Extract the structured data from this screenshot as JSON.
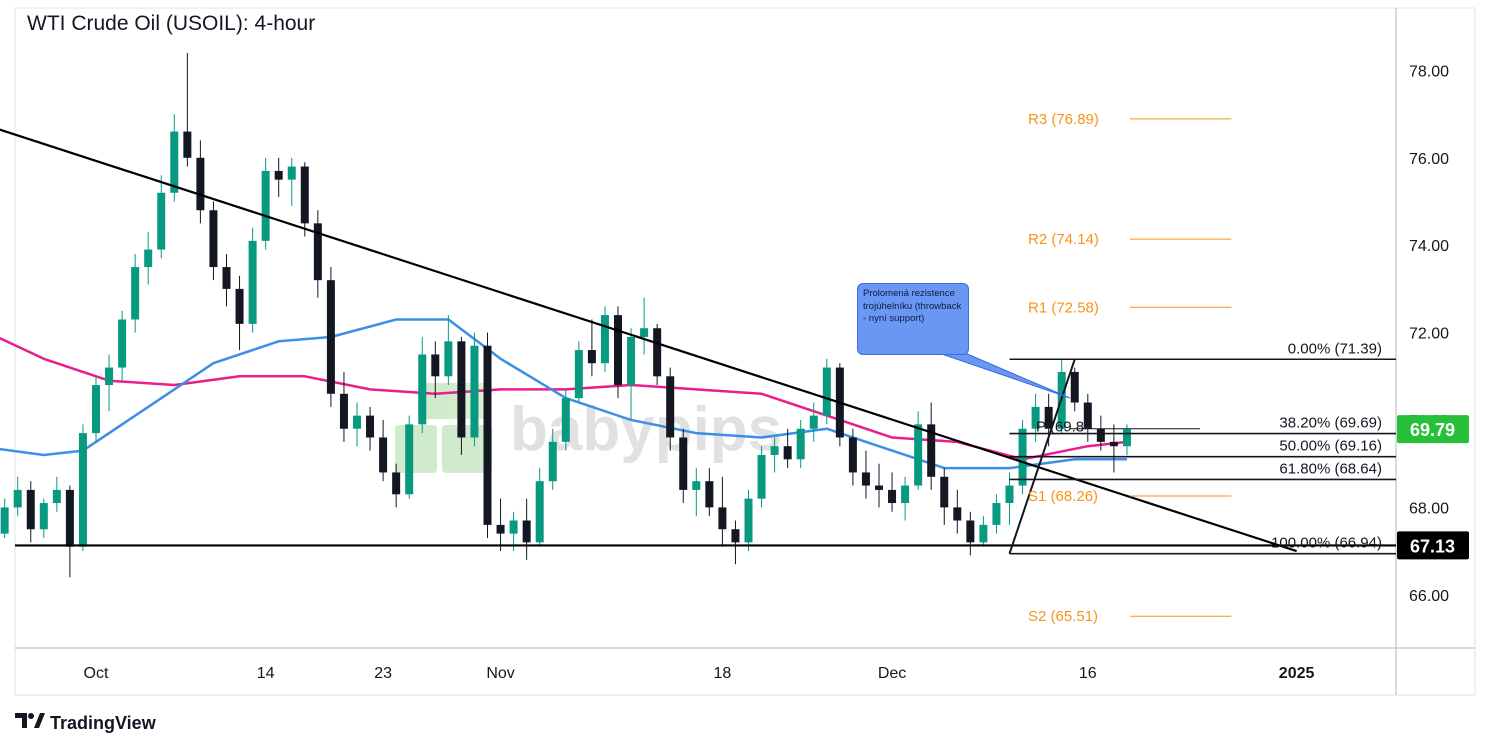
{
  "title": "WTI Crude Oil (USOIL): 4-hour",
  "watermark": "babypips",
  "footer_brand": "TradingView",
  "callout_text": "Prolomená rezistence trojúhelníku (throwback - nyní support)",
  "colors": {
    "up_candle": "#089981",
    "down_candle": "#131722",
    "ma_pink": "#e91e8c",
    "ma_blue": "#3d8fe6",
    "pivot": "#f7931a",
    "price_label_bg": "#26c139",
    "support_label_bg": "#000000",
    "callout_bg": "#6a97f2"
  },
  "chart_data": {
    "type": "candlestick",
    "instrument": "WTI Crude Oil (USOIL)",
    "timeframe": "4-hour",
    "y_axis": {
      "ticks": [
        "78.00",
        "76.00",
        "74.00",
        "72.00",
        "70.00",
        "68.00",
        "66.00"
      ],
      "tick_values": [
        78,
        76,
        74,
        72,
        70,
        68,
        66
      ],
      "range": [
        64.8,
        79.8
      ],
      "side": "right"
    },
    "x_axis": {
      "ticks": [
        "Oct",
        "14",
        "23",
        "Nov",
        "18",
        "Dec",
        "16",
        "2025"
      ],
      "tick_dates": [
        "2024-10-01",
        "2024-10-14",
        "2024-10-23",
        "2024-11-01",
        "2024-11-18",
        "2024-12-01",
        "2024-12-16",
        "2025-01-01"
      ]
    },
    "price_label": {
      "text": "69.79",
      "value": 69.79
    },
    "support_label": {
      "text": "67.13",
      "value": 67.13
    },
    "pivots": [
      {
        "label": "R3 (76.89)",
        "value": 76.89
      },
      {
        "label": "R2 (74.14)",
        "value": 74.14
      },
      {
        "label": "R1 (72.58)",
        "value": 72.58
      },
      {
        "label": "P (69.8",
        "value": 69.8
      },
      {
        "label": "S1 (68.26)",
        "value": 68.26
      },
      {
        "label": "S2 (65.51)",
        "value": 65.51
      }
    ],
    "fibonacci": [
      {
        "label": "0.00% (71.39)",
        "value": 71.39
      },
      {
        "label": "38.20% (69.69)",
        "value": 69.69
      },
      {
        "label": "50.00% (69.16)",
        "value": 69.16
      },
      {
        "label": "61.80% (68.64)",
        "value": 68.64
      },
      {
        "label": "100.00% (66.94)",
        "value": 66.94
      }
    ],
    "fib_swing": {
      "low": {
        "date": "2024-12-10",
        "value": 66.94
      },
      "high": {
        "date": "2024-12-15",
        "value": 71.39
      }
    },
    "trendlines": [
      {
        "name": "descending triangle resistance",
        "from": {
          "date": "2024-09-21",
          "value": 76.9
        },
        "to": {
          "date": "2025-01-01",
          "value": 67.0
        }
      },
      {
        "name": "horizontal support",
        "from": {
          "date": "2024-09-17",
          "value": 67.13
        },
        "to": {
          "date": "2025-01-01",
          "value": 67.13
        }
      }
    ],
    "candles": [
      {
        "d": "2024-09-17",
        "o": 69.5,
        "h": 69.8,
        "l": 69.2,
        "c": 69.3
      },
      {
        "d": "2024-09-18",
        "o": 69.3,
        "h": 69.4,
        "l": 68.6,
        "c": 68.8
      },
      {
        "d": "2024-09-19",
        "o": 68.8,
        "h": 70.0,
        "l": 68.7,
        "c": 69.8
      },
      {
        "d": "2024-09-20",
        "o": 69.8,
        "h": 69.9,
        "l": 68.3,
        "c": 68.5
      },
      {
        "d": "2024-09-21",
        "o": 68.5,
        "h": 68.6,
        "l": 67.0,
        "c": 67.3
      },
      {
        "d": "2024-09-22",
        "o": 67.3,
        "h": 67.9,
        "l": 67.1,
        "c": 67.6
      },
      {
        "d": "2024-09-23",
        "o": 67.6,
        "h": 67.9,
        "l": 67.1,
        "c": 67.4
      },
      {
        "d": "2024-09-24",
        "o": 67.4,
        "h": 68.2,
        "l": 67.3,
        "c": 68.0
      },
      {
        "d": "2024-09-25",
        "o": 68.0,
        "h": 68.7,
        "l": 67.8,
        "c": 68.4
      },
      {
        "d": "2024-09-26",
        "o": 68.4,
        "h": 68.6,
        "l": 67.2,
        "c": 67.5
      },
      {
        "d": "2024-09-27",
        "o": 67.5,
        "h": 68.2,
        "l": 67.3,
        "c": 68.1
      },
      {
        "d": "2024-09-28",
        "o": 68.1,
        "h": 68.7,
        "l": 67.9,
        "c": 68.4
      },
      {
        "d": "2024-09-29",
        "o": 68.4,
        "h": 68.5,
        "l": 66.4,
        "c": 67.1
      },
      {
        "d": "2024-09-30",
        "o": 67.1,
        "h": 69.9,
        "l": 67.0,
        "c": 69.7
      },
      {
        "d": "2024-10-01",
        "o": 69.7,
        "h": 71.0,
        "l": 69.5,
        "c": 70.8
      },
      {
        "d": "2024-10-02",
        "o": 70.8,
        "h": 71.5,
        "l": 70.2,
        "c": 71.2
      },
      {
        "d": "2024-10-03",
        "o": 71.2,
        "h": 72.5,
        "l": 70.9,
        "c": 72.3
      },
      {
        "d": "2024-10-04",
        "o": 72.3,
        "h": 73.8,
        "l": 72.0,
        "c": 73.5
      },
      {
        "d": "2024-10-05",
        "o": 73.5,
        "h": 74.3,
        "l": 73.1,
        "c": 73.9
      },
      {
        "d": "2024-10-06",
        "o": 73.9,
        "h": 75.6,
        "l": 73.7,
        "c": 75.2
      },
      {
        "d": "2024-10-07",
        "o": 75.2,
        "h": 77.0,
        "l": 75.0,
        "c": 76.6
      },
      {
        "d": "2024-10-08",
        "o": 76.6,
        "h": 78.4,
        "l": 75.8,
        "c": 76.0
      },
      {
        "d": "2024-10-09",
        "o": 76.0,
        "h": 76.4,
        "l": 74.5,
        "c": 74.8
      },
      {
        "d": "2024-10-10",
        "o": 74.8,
        "h": 75.0,
        "l": 73.2,
        "c": 73.5
      },
      {
        "d": "2024-10-11",
        "o": 73.5,
        "h": 73.8,
        "l": 72.6,
        "c": 73.0
      },
      {
        "d": "2024-10-12",
        "o": 73.0,
        "h": 73.3,
        "l": 71.6,
        "c": 72.2
      },
      {
        "d": "2024-10-13",
        "o": 72.2,
        "h": 74.4,
        "l": 72.0,
        "c": 74.1
      },
      {
        "d": "2024-10-14",
        "o": 74.1,
        "h": 76.0,
        "l": 73.9,
        "c": 75.7
      },
      {
        "d": "2024-10-15",
        "o": 75.7,
        "h": 76.0,
        "l": 75.1,
        "c": 75.5
      },
      {
        "d": "2024-10-16",
        "o": 75.5,
        "h": 76.0,
        "l": 74.9,
        "c": 75.8
      },
      {
        "d": "2024-10-17",
        "o": 75.8,
        "h": 75.9,
        "l": 74.2,
        "c": 74.5
      },
      {
        "d": "2024-10-18",
        "o": 74.5,
        "h": 74.8,
        "l": 72.8,
        "c": 73.2
      },
      {
        "d": "2024-10-19",
        "o": 73.2,
        "h": 73.5,
        "l": 70.3,
        "c": 70.6
      },
      {
        "d": "2024-10-20",
        "o": 70.6,
        "h": 71.1,
        "l": 69.5,
        "c": 69.8
      },
      {
        "d": "2024-10-21",
        "o": 69.8,
        "h": 70.4,
        "l": 69.4,
        "c": 70.1
      },
      {
        "d": "2024-10-22",
        "o": 70.1,
        "h": 70.3,
        "l": 69.3,
        "c": 69.6
      },
      {
        "d": "2024-10-23",
        "o": 69.6,
        "h": 70.0,
        "l": 68.6,
        "c": 68.8
      },
      {
        "d": "2024-10-24",
        "o": 68.8,
        "h": 69.0,
        "l": 68.0,
        "c": 68.3
      },
      {
        "d": "2024-10-25",
        "o": 68.3,
        "h": 70.1,
        "l": 68.2,
        "c": 69.9
      },
      {
        "d": "2024-10-26",
        "o": 69.9,
        "h": 71.9,
        "l": 69.7,
        "c": 71.5
      },
      {
        "d": "2024-10-27",
        "o": 71.5,
        "h": 71.8,
        "l": 70.5,
        "c": 71.0
      },
      {
        "d": "2024-10-28",
        "o": 71.0,
        "h": 72.4,
        "l": 70.8,
        "c": 71.8
      },
      {
        "d": "2024-10-29",
        "o": 71.8,
        "h": 71.9,
        "l": 69.2,
        "c": 69.6
      },
      {
        "d": "2024-10-30",
        "o": 69.6,
        "h": 72.0,
        "l": 69.4,
        "c": 71.7
      },
      {
        "d": "2024-10-31",
        "o": 71.7,
        "h": 72.0,
        "l": 67.3,
        "c": 67.6
      },
      {
        "d": "2024-11-01",
        "o": 67.6,
        "h": 68.2,
        "l": 67.0,
        "c": 67.4
      },
      {
        "d": "2024-11-02",
        "o": 67.4,
        "h": 67.9,
        "l": 67.0,
        "c": 67.7
      },
      {
        "d": "2024-11-03",
        "o": 67.7,
        "h": 68.2,
        "l": 66.8,
        "c": 67.2
      },
      {
        "d": "2024-11-04",
        "o": 67.2,
        "h": 68.9,
        "l": 67.1,
        "c": 68.6
      },
      {
        "d": "2024-11-05",
        "o": 68.6,
        "h": 69.8,
        "l": 68.4,
        "c": 69.5
      },
      {
        "d": "2024-11-06",
        "o": 69.5,
        "h": 70.7,
        "l": 69.3,
        "c": 70.5
      },
      {
        "d": "2024-11-07",
        "o": 70.5,
        "h": 71.8,
        "l": 70.4,
        "c": 71.6
      },
      {
        "d": "2024-11-08",
        "o": 71.6,
        "h": 72.3,
        "l": 71.0,
        "c": 71.3
      },
      {
        "d": "2024-11-09",
        "o": 71.3,
        "h": 72.6,
        "l": 71.1,
        "c": 72.4
      },
      {
        "d": "2024-11-10",
        "o": 72.4,
        "h": 72.6,
        "l": 70.5,
        "c": 70.8
      },
      {
        "d": "2024-11-11",
        "o": 70.8,
        "h": 72.1,
        "l": 70.0,
        "c": 71.9
      },
      {
        "d": "2024-11-12",
        "o": 71.9,
        "h": 72.8,
        "l": 71.5,
        "c": 72.1
      },
      {
        "d": "2024-11-13",
        "o": 72.1,
        "h": 72.2,
        "l": 70.8,
        "c": 71.0
      },
      {
        "d": "2024-11-14",
        "o": 71.0,
        "h": 71.2,
        "l": 69.3,
        "c": 69.6
      },
      {
        "d": "2024-11-15",
        "o": 69.6,
        "h": 69.8,
        "l": 68.1,
        "c": 68.4
      },
      {
        "d": "2024-11-16",
        "o": 68.4,
        "h": 68.9,
        "l": 67.8,
        "c": 68.6
      },
      {
        "d": "2024-11-17",
        "o": 68.6,
        "h": 68.9,
        "l": 67.8,
        "c": 68.0
      },
      {
        "d": "2024-11-18",
        "o": 68.0,
        "h": 68.7,
        "l": 67.1,
        "c": 67.5
      },
      {
        "d": "2024-11-19",
        "o": 67.5,
        "h": 67.7,
        "l": 66.7,
        "c": 67.2
      },
      {
        "d": "2024-11-20",
        "o": 67.2,
        "h": 68.4,
        "l": 67.0,
        "c": 68.2
      },
      {
        "d": "2024-11-21",
        "o": 68.2,
        "h": 69.4,
        "l": 68.0,
        "c": 69.2
      },
      {
        "d": "2024-11-22",
        "o": 69.2,
        "h": 69.6,
        "l": 68.8,
        "c": 69.4
      },
      {
        "d": "2024-11-23",
        "o": 69.4,
        "h": 69.8,
        "l": 68.9,
        "c": 69.1
      },
      {
        "d": "2024-11-24",
        "o": 69.1,
        "h": 70.0,
        "l": 68.9,
        "c": 69.8
      },
      {
        "d": "2024-11-25",
        "o": 69.8,
        "h": 70.4,
        "l": 69.5,
        "c": 70.1
      },
      {
        "d": "2024-11-26",
        "o": 70.1,
        "h": 71.4,
        "l": 69.9,
        "c": 71.2
      },
      {
        "d": "2024-11-27",
        "o": 71.2,
        "h": 71.3,
        "l": 69.4,
        "c": 69.6
      },
      {
        "d": "2024-11-28",
        "o": 69.6,
        "h": 69.8,
        "l": 68.5,
        "c": 68.8
      },
      {
        "d": "2024-11-29",
        "o": 68.8,
        "h": 69.3,
        "l": 68.2,
        "c": 68.5
      },
      {
        "d": "2024-11-30",
        "o": 68.5,
        "h": 69.0,
        "l": 68.0,
        "c": 68.4
      },
      {
        "d": "2024-12-01",
        "o": 68.4,
        "h": 68.8,
        "l": 67.9,
        "c": 68.1
      },
      {
        "d": "2024-12-02",
        "o": 68.1,
        "h": 68.7,
        "l": 67.7,
        "c": 68.5
      },
      {
        "d": "2024-12-03",
        "o": 68.5,
        "h": 70.2,
        "l": 68.4,
        "c": 69.9
      },
      {
        "d": "2024-12-04",
        "o": 69.9,
        "h": 70.4,
        "l": 68.4,
        "c": 68.7
      },
      {
        "d": "2024-12-05",
        "o": 68.7,
        "h": 68.9,
        "l": 67.6,
        "c": 68.0
      },
      {
        "d": "2024-12-06",
        "o": 68.0,
        "h": 68.4,
        "l": 67.4,
        "c": 67.7
      },
      {
        "d": "2024-12-07",
        "o": 67.7,
        "h": 67.9,
        "l": 66.9,
        "c": 67.2
      },
      {
        "d": "2024-12-08",
        "o": 67.2,
        "h": 67.8,
        "l": 67.1,
        "c": 67.6
      },
      {
        "d": "2024-12-09",
        "o": 67.6,
        "h": 68.3,
        "l": 67.4,
        "c": 68.1
      },
      {
        "d": "2024-12-10",
        "o": 68.1,
        "h": 68.8,
        "l": 67.6,
        "c": 68.5
      },
      {
        "d": "2024-12-11",
        "o": 68.5,
        "h": 70.0,
        "l": 68.3,
        "c": 69.8
      },
      {
        "d": "2024-12-12",
        "o": 69.8,
        "h": 70.6,
        "l": 69.5,
        "c": 70.3
      },
      {
        "d": "2024-12-13",
        "o": 70.3,
        "h": 70.6,
        "l": 69.4,
        "c": 69.8
      },
      {
        "d": "2024-12-14",
        "o": 69.8,
        "h": 71.4,
        "l": 69.7,
        "c": 71.1
      },
      {
        "d": "2024-12-15",
        "o": 71.1,
        "h": 71.2,
        "l": 70.2,
        "c": 70.4
      },
      {
        "d": "2024-12-16",
        "o": 70.4,
        "h": 70.6,
        "l": 69.5,
        "c": 69.8
      },
      {
        "d": "2024-12-17",
        "o": 69.8,
        "h": 70.1,
        "l": 69.3,
        "c": 69.5
      },
      {
        "d": "2024-12-18",
        "o": 69.5,
        "h": 69.9,
        "l": 68.8,
        "c": 69.4
      },
      {
        "d": "2024-12-19",
        "o": 69.4,
        "h": 69.9,
        "l": 69.2,
        "c": 69.79
      }
    ],
    "moving_averages": [
      {
        "name": "pink",
        "points": [
          [
            "2024-09-17",
            72.6
          ],
          [
            "2024-09-22",
            72.1
          ],
          [
            "2024-09-27",
            71.4
          ],
          [
            "2024-10-02",
            70.9
          ],
          [
            "2024-10-07",
            70.8
          ],
          [
            "2024-10-12",
            71.0
          ],
          [
            "2024-10-17",
            71.0
          ],
          [
            "2024-10-22",
            70.7
          ],
          [
            "2024-10-27",
            70.6
          ],
          [
            "2024-11-01",
            70.7
          ],
          [
            "2024-11-06",
            70.7
          ],
          [
            "2024-11-11",
            70.8
          ],
          [
            "2024-11-16",
            70.7
          ],
          [
            "2024-11-21",
            70.6
          ],
          [
            "2024-11-26",
            70.1
          ],
          [
            "2024-12-01",
            69.6
          ],
          [
            "2024-12-06",
            69.5
          ],
          [
            "2024-12-11",
            69.1
          ],
          [
            "2024-12-16",
            69.4
          ],
          [
            "2024-12-19",
            69.5
          ]
        ]
      },
      {
        "name": "blue",
        "points": [
          [
            "2024-09-17",
            69.7
          ],
          [
            "2024-09-22",
            69.4
          ],
          [
            "2024-09-27",
            69.2
          ],
          [
            "2024-09-30",
            69.3
          ],
          [
            "2024-10-05",
            70.3
          ],
          [
            "2024-10-10",
            71.3
          ],
          [
            "2024-10-15",
            71.8
          ],
          [
            "2024-10-19",
            71.9
          ],
          [
            "2024-10-24",
            72.3
          ],
          [
            "2024-10-28",
            72.3
          ],
          [
            "2024-11-01",
            71.4
          ],
          [
            "2024-11-06",
            70.5
          ],
          [
            "2024-11-11",
            70.0
          ],
          [
            "2024-11-16",
            69.7
          ],
          [
            "2024-11-21",
            69.6
          ],
          [
            "2024-11-26",
            69.8
          ],
          [
            "2024-12-01",
            69.3
          ],
          [
            "2024-12-05",
            68.9
          ],
          [
            "2024-12-10",
            68.9
          ],
          [
            "2024-12-15",
            69.1
          ],
          [
            "2024-12-19",
            69.1
          ]
        ]
      }
    ]
  }
}
